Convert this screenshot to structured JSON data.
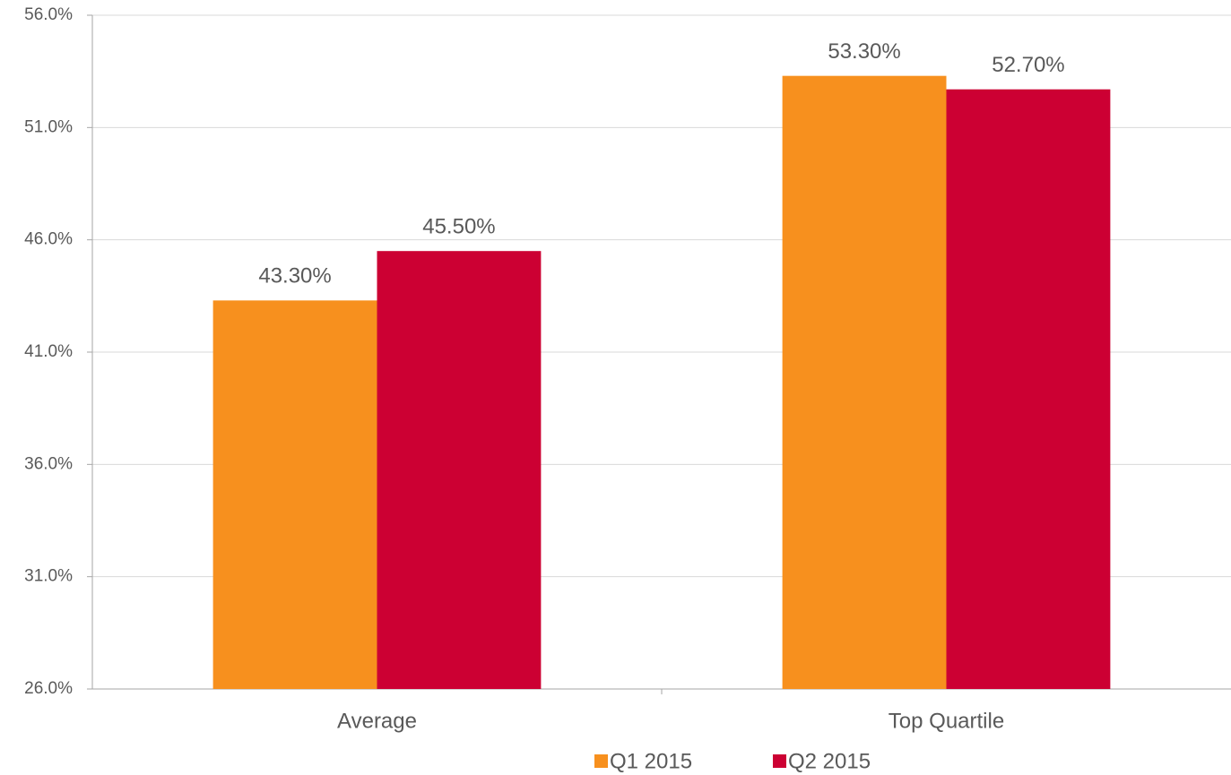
{
  "chart_data": {
    "type": "bar",
    "categories": [
      "Average",
      "Top Quartile"
    ],
    "series": [
      {
        "name": "Q1 2015",
        "color": "#f7901e",
        "values": [
          43.3,
          53.3
        ],
        "value_labels": [
          "43.30%",
          "53.30%"
        ]
      },
      {
        "name": "Q2 2015",
        "color": "#cc0033",
        "values": [
          45.5,
          52.7
        ],
        "value_labels": [
          "45.50%",
          "52.70%"
        ]
      }
    ],
    "ylim": [
      26,
      56
    ],
    "yticks": [
      {
        "value": 26,
        "label": "26.0%"
      },
      {
        "value": 31,
        "label": "31.0%"
      },
      {
        "value": 36,
        "label": "36.0%"
      },
      {
        "value": 41,
        "label": "41.0%"
      },
      {
        "value": 46,
        "label": "46.0%"
      },
      {
        "value": 51,
        "label": "51.0%"
      },
      {
        "value": 56,
        "label": "56.0%"
      }
    ],
    "grid": true,
    "legend": "bottom"
  }
}
